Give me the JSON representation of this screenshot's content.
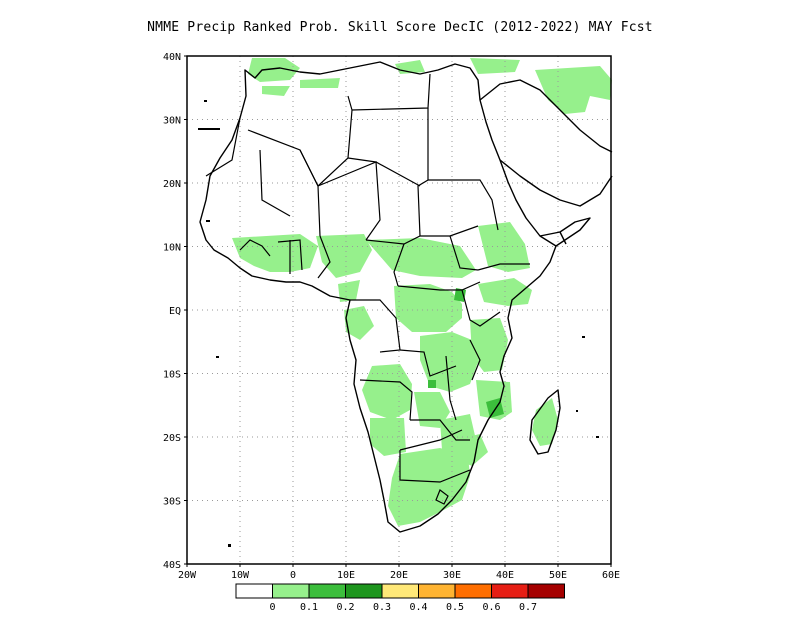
{
  "title": "NMME Precip Ranked Prob. Skill Score DecIC (2012-2022) MAY Fcst",
  "map": {
    "lat_labels": [
      "40N",
      "30N",
      "20N",
      "10N",
      "EQ",
      "10S",
      "20S",
      "30S",
      "40S"
    ],
    "lon_labels": [
      "20W",
      "10W",
      "0",
      "10E",
      "20E",
      "30E",
      "40E",
      "50E",
      "60E"
    ],
    "extent": {
      "lon": [
        -20,
        60
      ],
      "lat": [
        -40,
        40
      ]
    },
    "grid": true
  },
  "colorbar": {
    "labels": [
      "0",
      "0.1",
      "0.2",
      "0.3",
      "0.4",
      "0.5",
      "0.6",
      "0.7"
    ],
    "colors": [
      "#ffffff",
      "#96f08c",
      "#3cbe3c",
      "#1e961e",
      "#ffe878",
      "#ffb432",
      "#ff6e00",
      "#e61e14",
      "#a50000"
    ]
  },
  "colors": {
    "skill_low": "#96f08c",
    "skill_mid": "#3cbe3c",
    "coast": "#000000",
    "grid": "#9a9a9a"
  }
}
